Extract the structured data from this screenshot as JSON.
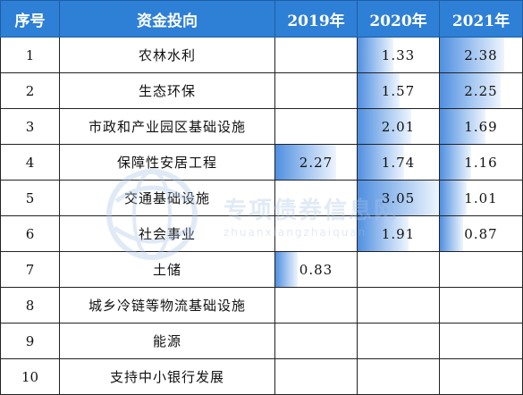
{
  "headers": [
    "序号",
    "资金投向",
    "2019年",
    "2020年",
    "2021年"
  ],
  "rows": [
    {
      "no": "1",
      "name": "农林水利",
      "y2019": "",
      "y2020": "1.33",
      "y2021": "2.38"
    },
    {
      "no": "2",
      "name": "生态环保",
      "y2019": "",
      "y2020": "1.57",
      "y2021": "2.25"
    },
    {
      "no": "3",
      "name": "市政和产业园区基础设施",
      "y2019": "",
      "y2020": "2.01",
      "y2021": "1.69"
    },
    {
      "no": "4",
      "name": "保障性安居工程",
      "y2019": "2.27",
      "y2020": "1.74",
      "y2021": "1.16"
    },
    {
      "no": "5",
      "name": "交通基础设施",
      "y2019": "",
      "y2020": "3.05",
      "y2021": "1.01"
    },
    {
      "no": "6",
      "name": "社会事业",
      "y2019": "",
      "y2020": "1.91",
      "y2021": "0.87"
    },
    {
      "no": "7",
      "name": "土储",
      "y2019": "0.83",
      "y2020": "",
      "y2021": ""
    },
    {
      "no": "8",
      "name": "城乡冷链等物流基础设施",
      "y2019": "",
      "y2020": "",
      "y2021": ""
    },
    {
      "no": "9",
      "name": "能源",
      "y2019": "",
      "y2020": "",
      "y2021": ""
    },
    {
      "no": "10",
      "name": "支持中小银行发展",
      "y2019": "",
      "y2020": "",
      "y2021": ""
    }
  ],
  "watermark": {
    "title": "专项债券信息网",
    "subtitle": "zhuanxiangzhaiquan"
  },
  "colors": {
    "header_bg": "#2e7fd6",
    "bar": "#4f8fe0"
  }
}
